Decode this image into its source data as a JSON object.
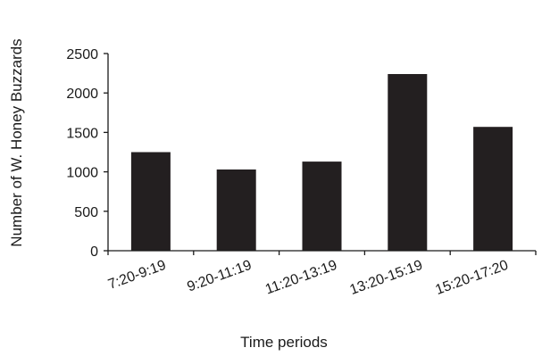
{
  "chart_data": {
    "type": "bar",
    "title": "",
    "xlabel": "Time periods",
    "ylabel": "Number of W. Honey Buzzards",
    "categories": [
      "7:20-9:19",
      "9:20-11:19",
      "11:20-13:19",
      "13:20-15:19",
      "15:20-17:20"
    ],
    "values": [
      1250,
      1030,
      1130,
      2240,
      1570
    ],
    "ylim": [
      0,
      2500
    ],
    "yticks": [
      0,
      500,
      1000,
      1500,
      2000,
      2500
    ],
    "grid": false,
    "legend": "none",
    "bar_color": "#231f20"
  }
}
